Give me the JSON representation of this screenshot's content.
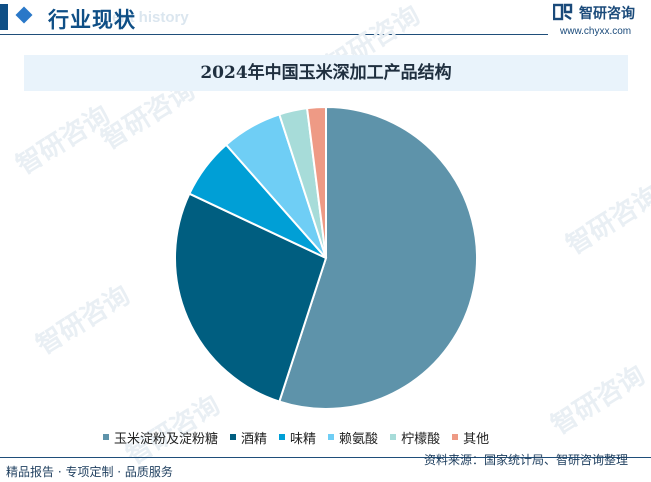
{
  "header": {
    "title": "行业现状",
    "subtitle_en": "ent history"
  },
  "brand": {
    "name": "智研咨询",
    "url": "www.chyxx.com",
    "watermark": "智研咨询"
  },
  "footer": {
    "left": "精品报告 · 专项定制 · 品质服务",
    "source": "资料来源：国家统计局、智研咨询整理"
  },
  "colors": {
    "header": "#0f4f86",
    "title_bg": "#e9f3fb"
  },
  "chart_data": {
    "type": "pie",
    "title": "2024年中国玉米深加工产品结构",
    "legend_position": "bottom",
    "slices": [
      {
        "label": "玉米淀粉及淀粉糖",
        "value": 55.0,
        "color": "#5e93aa"
      },
      {
        "label": "酒精",
        "value": 27.0,
        "color": "#005e80"
      },
      {
        "label": "味精",
        "value": 6.5,
        "color": "#009fd6"
      },
      {
        "label": "赖氨酸",
        "value": 6.5,
        "color": "#6fcef5"
      },
      {
        "label": "柠檬酸",
        "value": 3.0,
        "color": "#a7dcd9"
      },
      {
        "label": "其他",
        "value": 2.0,
        "color": "#ee9a85"
      }
    ]
  }
}
